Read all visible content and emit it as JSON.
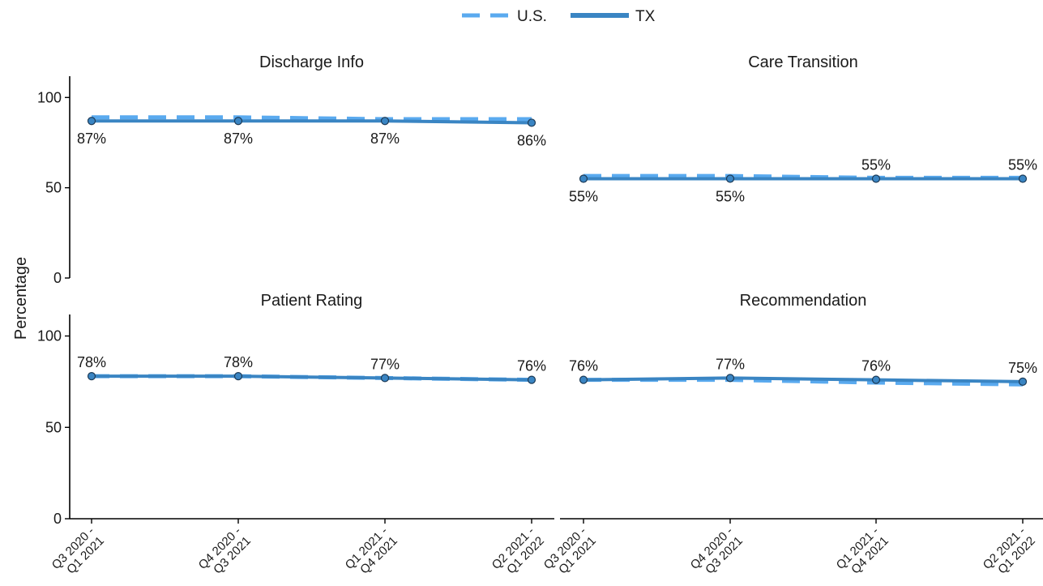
{
  "chart_data": {
    "type": "line",
    "ylabel": "Percentage",
    "yticks": [
      0,
      50,
      100
    ],
    "ylim": [
      0,
      110
    ],
    "legend": {
      "placement": "top-center",
      "entries": [
        {
          "name": "U.S.",
          "style": "dashed",
          "color": "#5aaaef"
        },
        {
          "name": "TX",
          "style": "solid",
          "color": "#3a85c3"
        }
      ]
    },
    "categories": [
      [
        "Q3 2020 -",
        "Q1 2021"
      ],
      [
        "Q4 2020 -",
        "Q3 2021"
      ],
      [
        "Q1 2021 -",
        "Q4 2021"
      ],
      [
        "Q2 2021 -",
        "Q1 2022"
      ]
    ],
    "panels": [
      {
        "title": "Discharge Info",
        "series": [
          {
            "name": "U.S.",
            "values": [
              89,
              89,
              88,
              88
            ]
          },
          {
            "name": "TX",
            "values": [
              87,
              87,
              87,
              86
            ]
          }
        ],
        "labels": [
          "87%",
          "87%",
          "87%",
          "86%"
        ],
        "label_position": [
          "below",
          "below",
          "below",
          "below"
        ]
      },
      {
        "title": "Care Transition",
        "series": [
          {
            "name": "U.S.",
            "values": [
              56.5,
              56.5,
              55.5,
              55.5
            ]
          },
          {
            "name": "TX",
            "values": [
              55,
              55,
              55,
              55
            ]
          }
        ],
        "labels": [
          "55%",
          "55%",
          "55%",
          "55%"
        ],
        "label_position": [
          "below",
          "below",
          "above",
          "above"
        ]
      },
      {
        "title": "Patient Rating",
        "series": [
          {
            "name": "U.S.",
            "values": [
              78,
              78,
              77,
              76
            ]
          },
          {
            "name": "TX",
            "values": [
              78,
              78,
              77,
              76
            ]
          }
        ],
        "labels": [
          "78%",
          "78%",
          "77%",
          "76%"
        ],
        "label_position": [
          "above",
          "above",
          "above",
          "above"
        ]
      },
      {
        "title": "Recommendation",
        "series": [
          {
            "name": "U.S.",
            "values": [
              76,
              76,
              74.5,
              73.5
            ]
          },
          {
            "name": "TX",
            "values": [
              76,
              77,
              76,
              75
            ]
          }
        ],
        "labels": [
          "76%",
          "77%",
          "76%",
          "75%"
        ],
        "label_position": [
          "above",
          "above",
          "above",
          "above"
        ]
      }
    ]
  }
}
